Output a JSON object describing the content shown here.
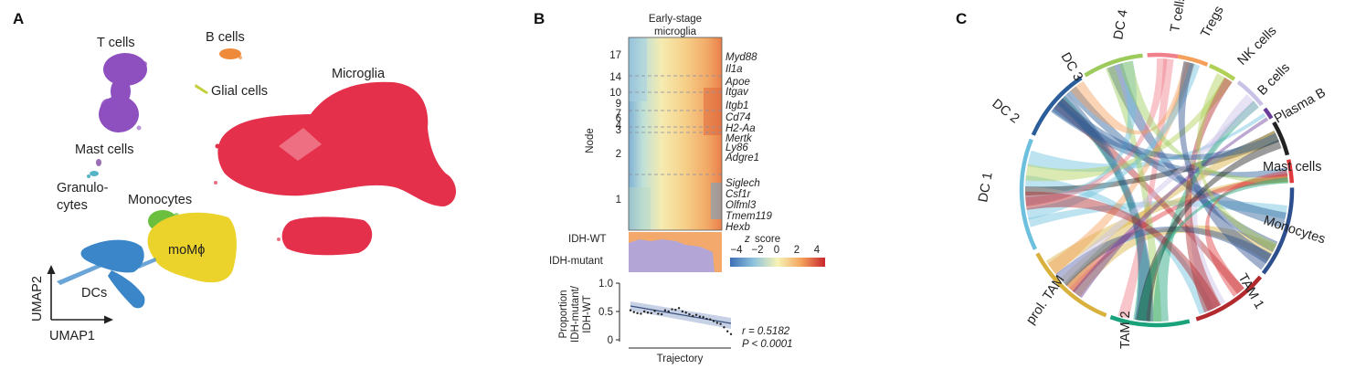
{
  "panels": {
    "a": {
      "letter": "A",
      "clusters": {
        "t_cells": "T cells",
        "b_cells": "B cells",
        "glial_cells": "Glial cells",
        "microglia": "Microglia",
        "mast_cells": "Mast cells",
        "granulocytes_line1": "Granulo-",
        "granulocytes_line2": "cytes",
        "monocytes": "Monocytes",
        "mompho": "moMϕ",
        "dcs": "DCs"
      },
      "axis_y": "UMAP2",
      "axis_x": "UMAP1",
      "colors": {
        "t_cells": "#8e4fbf",
        "b_cells": "#ef8a3a",
        "glial_cells": "#c2cf3a",
        "microglia": "#e5304b",
        "mast_cells": "#9b6fb5",
        "granulocytes": "#55b4c8",
        "monocytes": "#6abf3e",
        "mompho": "#ecd32c",
        "dcs": "#3a86c8"
      }
    },
    "b": {
      "letter": "B",
      "title_line1": "Early-stage",
      "title_line2": "microglia",
      "node_axis": "Node",
      "node_ticks": [
        "17",
        "14",
        "10",
        "9",
        "7",
        "6",
        "4",
        "3",
        "2",
        "1"
      ],
      "genes": [
        "Myd88",
        "Il1a",
        "Apoe",
        "Itgav",
        "Itgb1",
        "Cd74",
        "H2-Aa",
        "Mertk",
        "Ly86",
        "Adgre1",
        "Siglech",
        "Csf1r",
        "Olfml3",
        "Tmem119",
        "Hexb"
      ],
      "idh_wt_label": "IDH-WT",
      "idh_mut_label": "IDH-mutant",
      "colorbar_title": "z score",
      "colorbar_ticks": [
        "−4",
        "−2",
        "0",
        "2",
        "4"
      ],
      "idh_colors": {
        "wt": "#f3a96b",
        "mutant": "#b3a6d6"
      },
      "proportion_chart": {
        "ylabel_line1": "Proportion",
        "ylabel_line2": "IDH-mutant/",
        "ylabel_line3": "IDH-WT",
        "xlabel": "Trajectory",
        "yticks": [
          "1.0",
          "0.5",
          "0"
        ],
        "stat_r": "r = 0.5182",
        "stat_p": "P < 0.0001"
      }
    },
    "c": {
      "letter": "C",
      "segments": [
        {
          "name": "DC 4",
          "color": "#f07f8c"
        },
        {
          "name": "T cells",
          "color": "#f5a05a"
        },
        {
          "name": "Tregs",
          "color": "#b0d056"
        },
        {
          "name": "NK cells",
          "color": "#c9c2e6"
        },
        {
          "name": "B cells",
          "color": "#6a3d9a"
        },
        {
          "name": "Plasma B",
          "color": "#222222"
        },
        {
          "name": "Mast cells",
          "color": "#e0393e"
        },
        {
          "name": "Monocytes",
          "color": "#2d4f8e"
        },
        {
          "name": "TAM 1",
          "color": "#b22a2e"
        },
        {
          "name": "TAM 2",
          "color": "#1aa37a"
        },
        {
          "name": "prol. TAM",
          "color": "#d8b13d"
        },
        {
          "name": "DC 1",
          "color": "#6cc0de"
        },
        {
          "name": "DC 2",
          "color": "#2a5d9a"
        },
        {
          "name": "DC 3",
          "color": "#9ccb5b"
        }
      ]
    }
  },
  "chart_data": [
    {
      "type": "line",
      "x": [
        1,
        2,
        3,
        4,
        5,
        6,
        7,
        8,
        9,
        10,
        11,
        12,
        13,
        14,
        15,
        16,
        17,
        18,
        19,
        20,
        21,
        22,
        23,
        24,
        25,
        26,
        27,
        28,
        29,
        30
      ],
      "series": [
        {
          "values": [
            0.52,
            0.49,
            0.47,
            0.46,
            0.5,
            0.48,
            0.47,
            0.51,
            0.46,
            0.45,
            0.52,
            0.5,
            0.54,
            0.53,
            0.56,
            0.5,
            0.48,
            0.45,
            0.42,
            0.44,
            0.41,
            0.4,
            0.37,
            0.36,
            0.33,
            0.3,
            0.28,
            0.22,
            0.15,
            0.1
          ]
        }
      ],
      "xlabel": "Trajectory",
      "ylim": [
        0,
        1.0
      ]
    }
  ]
}
